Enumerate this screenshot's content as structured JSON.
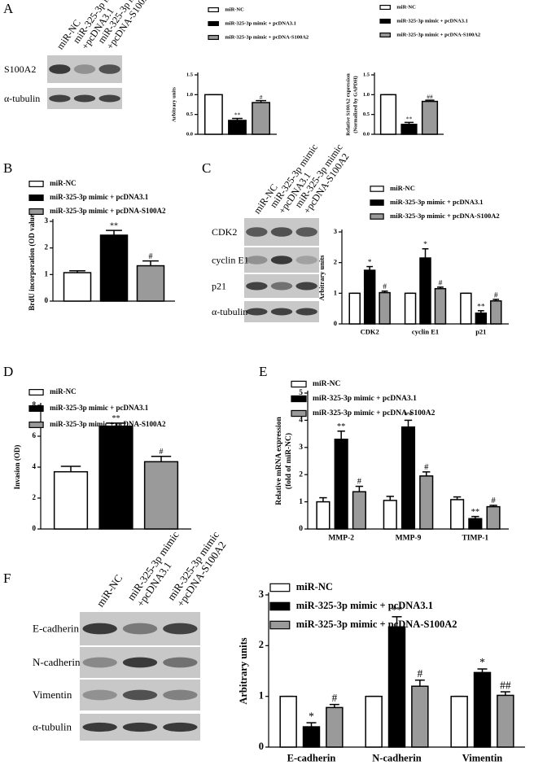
{
  "panel_labels": [
    "A",
    "B",
    "C",
    "D",
    "E",
    "F"
  ],
  "blots": [
    {
      "lanes": [
        [
          "miR-NC"
        ],
        [
          "miR-325-3p mimic",
          "+pcDNA3.1"
        ],
        [
          "miR-325-3p mimic",
          "+pcDNA-S100A2"
        ]
      ],
      "rows": [
        "S100A2",
        "α-tubulin"
      ]
    },
    {
      "lanes": [
        [
          "miR-NC"
        ],
        [
          "miR-325-3p mimic",
          "+pcDNA3.1"
        ],
        [
          "miR-325-3p mimic",
          "+pcDNA-S100A2"
        ]
      ],
      "rows": [
        "CDK2",
        "cyclin E1",
        "p21",
        "α-tubulin"
      ]
    },
    {
      "lanes": [
        [
          "miR-NC"
        ],
        [
          "miR-325-3p mimic",
          "+pcDNA3.1"
        ],
        [
          "miR-325-3p mimic",
          "+pcDNA-S100A2"
        ]
      ],
      "rows": [
        "E-cadherin",
        "N-cadherin",
        "Vimentin",
        "α-tubulin"
      ]
    }
  ],
  "chart_data": [
    {
      "type": "bar",
      "ylabel": [
        "Arbitrary units"
      ],
      "ylim": [
        0,
        1.5
      ],
      "yticks": [
        {
          "value": 0,
          "label": "0.0"
        },
        0.5,
        {
          "value": 1,
          "label": "1.0"
        },
        1.5
      ],
      "categories": [
        null
      ],
      "series": [
        {
          "name": "miR-NC",
          "color": "#ffffff",
          "values": [
            1.0
          ],
          "errors": [
            0
          ],
          "significance": [
            null
          ]
        },
        {
          "name": "miR-325-3p mimic + pcDNA3.1",
          "color": "#000000",
          "values": [
            0.35
          ],
          "errors": [
            0.05
          ],
          "significance": [
            "**"
          ]
        },
        {
          "name": "miR-325-3p mimic + pcDNA-S100A2",
          "color": "#9a9a9a",
          "values": [
            0.8
          ],
          "errors": [
            0.05
          ],
          "significance": [
            "#"
          ]
        }
      ]
    },
    {
      "type": "bar",
      "ylabel": [
        "Relative S100A2 expression",
        "(Normalized by GAPDH)"
      ],
      "ylim": [
        0,
        1.5
      ],
      "yticks": [
        {
          "value": 0,
          "label": "0.0"
        },
        0.5,
        {
          "value": 1,
          "label": "1.0"
        },
        1.5
      ],
      "categories": [
        null
      ],
      "series": [
        {
          "name": "miR-NC",
          "color": "#ffffff",
          "values": [
            1.0
          ],
          "errors": [
            0
          ],
          "significance": [
            null
          ]
        },
        {
          "name": "miR-325-3p mimic + pcDNA3.1",
          "color": "#000000",
          "values": [
            0.25
          ],
          "errors": [
            0.05
          ],
          "significance": [
            "**"
          ]
        },
        {
          "name": "miR-325-3p mimic + pcDNA-S100A2",
          "color": "#9a9a9a",
          "values": [
            0.83
          ],
          "errors": [
            0.03
          ],
          "significance": [
            "##"
          ]
        }
      ]
    },
    {
      "type": "bar",
      "ylabel": [
        "BrdU incorporation (OD value)"
      ],
      "ylim": [
        0,
        3
      ],
      "yticks": [
        0,
        1,
        2,
        3
      ],
      "categories": [
        null
      ],
      "series": [
        {
          "name": "miR-NC",
          "color": "#ffffff",
          "values": [
            1.07
          ],
          "errors": [
            0.07
          ],
          "significance": [
            null
          ]
        },
        {
          "name": "miR-325-3p mimic + pcDNA3.1",
          "color": "#000000",
          "values": [
            2.48
          ],
          "errors": [
            0.18
          ],
          "significance": [
            "**"
          ]
        },
        {
          "name": "miR-325-3p mimic + pcDNA-S100A2",
          "color": "#9a9a9a",
          "values": [
            1.33
          ],
          "errors": [
            0.18
          ],
          "significance": [
            "#"
          ]
        }
      ]
    },
    {
      "type": "bar",
      "ylabel": [
        "Arbitrary units"
      ],
      "ylim": [
        0,
        3
      ],
      "yticks": [
        0,
        1,
        2,
        3
      ],
      "categories": [
        "CDK2",
        "cyclin E1",
        "p21"
      ],
      "series": [
        {
          "name": "miR-NC",
          "color": "#ffffff",
          "values": [
            1.0,
            1.0,
            1.0
          ],
          "errors": [
            0,
            0,
            0
          ],
          "significance": [
            null,
            null,
            null
          ]
        },
        {
          "name": "miR-325-3p mimic + pcDNA3.1",
          "color": "#000000",
          "values": [
            1.75,
            2.15,
            0.35
          ],
          "errors": [
            0.12,
            0.3,
            0.08
          ],
          "significance": [
            "*",
            "*",
            "**"
          ]
        },
        {
          "name": "miR-325-3p mimic + pcDNA-S100A2",
          "color": "#9a9a9a",
          "values": [
            1.02,
            1.15,
            0.75
          ],
          "errors": [
            0.05,
            0.05,
            0.05
          ],
          "significance": [
            "#",
            "#",
            "#"
          ]
        }
      ]
    },
    {
      "type": "bar",
      "ylabel": [
        "Invasion (OD)"
      ],
      "ylim": [
        0,
        8
      ],
      "yticks": [
        0,
        2,
        4,
        6,
        8
      ],
      "categories": [
        null
      ],
      "series": [
        {
          "name": "miR-NC",
          "color": "#ffffff",
          "values": [
            3.7
          ],
          "errors": [
            0.35
          ],
          "significance": [
            null
          ]
        },
        {
          "name": "miR-325-3p mimic + pcDNA3.1",
          "color": "#000000",
          "values": [
            6.65
          ],
          "errors": [
            0.2
          ],
          "significance": [
            "**"
          ]
        },
        {
          "name": "miR-325-3p mimic + pcDNA-S100A2",
          "color": "#9a9a9a",
          "values": [
            4.35
          ],
          "errors": [
            0.35
          ],
          "significance": [
            "#"
          ]
        }
      ]
    },
    {
      "type": "bar",
      "ylabel": [
        "Relative mRNA expression",
        "(fold of miR-NC)"
      ],
      "ylim": [
        0,
        5
      ],
      "yticks": [
        0,
        1,
        2,
        3,
        4,
        5
      ],
      "categories": [
        "MMP-2",
        "MMP-9",
        "TIMP-1"
      ],
      "series": [
        {
          "name": "miR-NC",
          "color": "#ffffff",
          "values": [
            1.0,
            1.05,
            1.08
          ],
          "errors": [
            0.15,
            0.15,
            0.1
          ],
          "significance": [
            null,
            null,
            null
          ]
        },
        {
          "name": "miR-325-3p mimic + pcDNA3.1",
          "color": "#000000",
          "values": [
            3.3,
            3.75,
            0.38
          ],
          "errors": [
            0.3,
            0.25,
            0.08
          ],
          "significance": [
            "**",
            "**",
            "**"
          ]
        },
        {
          "name": "miR-325-3p mimic + pcDNA-S100A2",
          "color": "#9a9a9a",
          "values": [
            1.37,
            1.95,
            0.82
          ],
          "errors": [
            0.2,
            0.15,
            0.05
          ],
          "significance": [
            "#",
            "#",
            "#"
          ]
        }
      ]
    },
    {
      "type": "bar",
      "ylabel": [
        "Arbitrary units"
      ],
      "ylim": [
        0,
        3
      ],
      "yticks": [
        0,
        1,
        2,
        3
      ],
      "categories": [
        "E-cadherin",
        "N-cadherin",
        "Vimentin"
      ],
      "series": [
        {
          "name": "miR-NC",
          "color": "#ffffff",
          "values": [
            1.0,
            1.0,
            1.0
          ],
          "errors": [
            0,
            0,
            0
          ],
          "significance": [
            null,
            null,
            null
          ]
        },
        {
          "name": "miR-325-3p mimic + pcDNA3.1",
          "color": "#000000",
          "values": [
            0.4,
            2.37,
            1.47
          ],
          "errors": [
            0.08,
            0.2,
            0.07
          ],
          "significance": [
            "*",
            "**",
            "*"
          ]
        },
        {
          "name": "miR-325-3p mimic + pcDNA-S100A2",
          "color": "#9a9a9a",
          "values": [
            0.78,
            1.2,
            1.02
          ],
          "errors": [
            0.06,
            0.12,
            0.07
          ],
          "significance": [
            "#",
            "#",
            "##"
          ]
        }
      ]
    }
  ]
}
